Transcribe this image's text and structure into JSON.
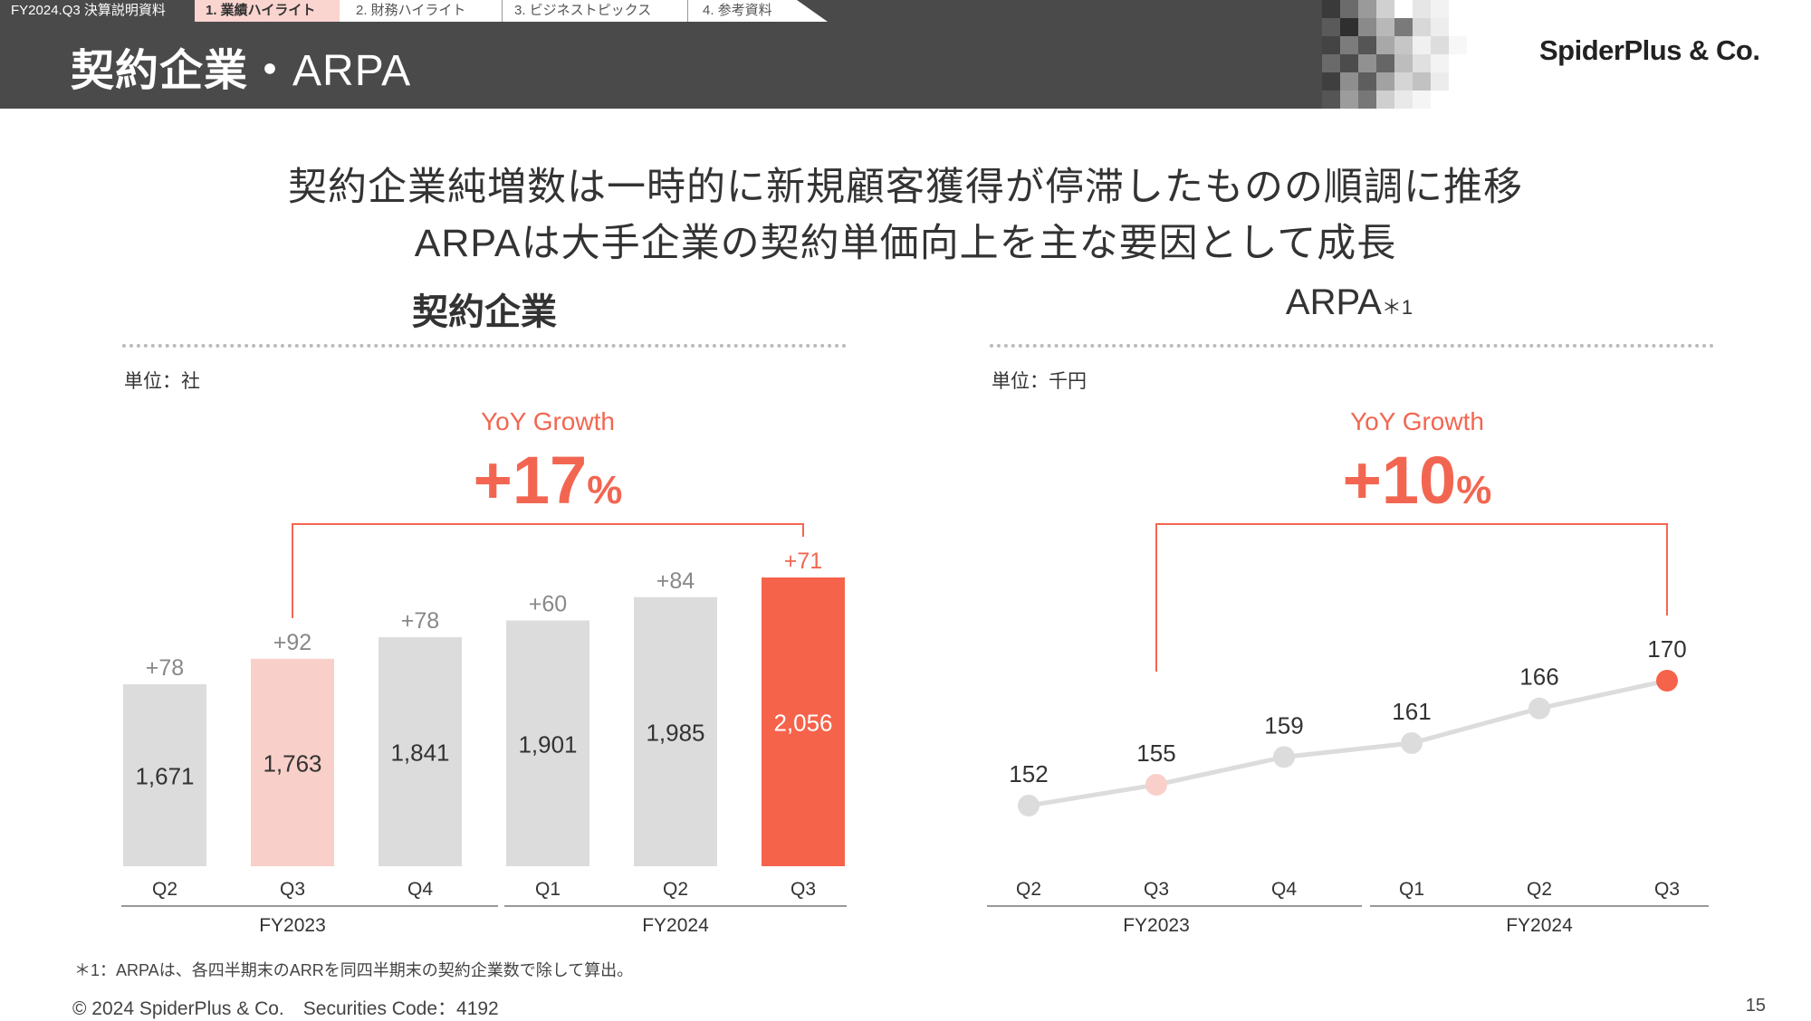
{
  "nav": {
    "doc_label": "FY2024.Q3 決算説明資料",
    "tabs": [
      {
        "label": "1.  業績ハイライト"
      },
      {
        "label": "2.  財務ハイライト"
      },
      {
        "label": "3.  ビジネストピックス"
      },
      {
        "label": "4.  参考資料"
      }
    ]
  },
  "header": {
    "title_jp": "契約企業",
    "title_sep": "・",
    "title_latin": "ARPA",
    "logo": "SpiderPlus & Co."
  },
  "headline": {
    "line1": "契約企業純増数は一時的に新規顧客獲得が停滞したものの順調に推移",
    "line2": "ARPAは大手企業の契約単価向上を主な要因として成長"
  },
  "left_panel": {
    "title": "契約企業",
    "unit": "単位：社",
    "yoy_label": "YoY Growth",
    "yoy_value": "+17",
    "yoy_unit": "%"
  },
  "right_panel": {
    "title": "ARPA",
    "title_note": "＊1",
    "unit": "単位：千円",
    "yoy_label": "YoY Growth",
    "yoy_value": "+10",
    "yoy_unit": "%"
  },
  "chart_data": [
    {
      "type": "bar",
      "categories": [
        "Q2",
        "Q3",
        "Q4",
        "Q1",
        "Q2",
        "Q3"
      ],
      "groups": [
        {
          "label": "FY2023",
          "categories": [
            "Q2",
            "Q3",
            "Q4"
          ]
        },
        {
          "label": "FY2024",
          "categories": [
            "Q1",
            "Q2",
            "Q3"
          ]
        }
      ],
      "values": [
        1671,
        1763,
        1841,
        1901,
        1985,
        2056
      ],
      "value_labels": [
        "1,671",
        "1,763",
        "1,841",
        "1,901",
        "1,985",
        "2,056"
      ],
      "net_adds": [
        "+78",
        "+92",
        "+78",
        "+60",
        "+84",
        "+71"
      ],
      "bar_colors": [
        "#dcdcdc",
        "#f8cfc9",
        "#dcdcdc",
        "#dcdcdc",
        "#dcdcdc",
        "#f6634b"
      ],
      "ylim": [
        0,
        2056
      ],
      "yoy_compare": [
        "FY2023 Q3",
        "FY2024 Q3"
      ]
    },
    {
      "type": "line",
      "categories": [
        "Q2",
        "Q3",
        "Q4",
        "Q1",
        "Q2",
        "Q3"
      ],
      "groups": [
        {
          "label": "FY2023",
          "categories": [
            "Q2",
            "Q3",
            "Q4"
          ]
        },
        {
          "label": "FY2024",
          "categories": [
            "Q1",
            "Q2",
            "Q3"
          ]
        }
      ],
      "values": [
        152,
        155,
        159,
        161,
        166,
        170
      ],
      "point_colors": [
        "#dcdcdc",
        "#f8cfc9",
        "#dcdcdc",
        "#dcdcdc",
        "#dcdcdc",
        "#f6634b"
      ],
      "yoy_compare": [
        "FY2023 Q3",
        "FY2024 Q3"
      ]
    }
  ],
  "footnote": "＊1：ARPAは、各四半期末のARRを同四半期末の契約企業数で除して算出。",
  "copyright": "© 2024 SpiderPlus & Co.　Securities Code：4192",
  "page_number": "15"
}
